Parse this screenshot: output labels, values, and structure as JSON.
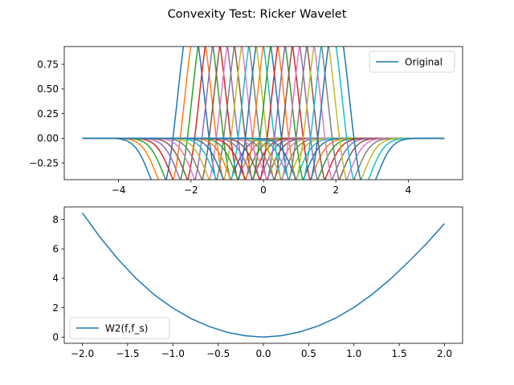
{
  "figure": {
    "title": "Convexity Test: Ricker Wavelet"
  },
  "chart_data": [
    {
      "type": "line",
      "title": "",
      "xlabel": "",
      "ylabel": "",
      "xlim": [
        -5.5,
        5.5
      ],
      "ylim": [
        -0.42,
        0.93
      ],
      "x_ticks": [
        -4,
        -2,
        0,
        2,
        4
      ],
      "x_tick_labels": [
        "−4",
        "−2",
        "0",
        "2",
        "4"
      ],
      "y_ticks": [
        -0.25,
        0,
        0.25,
        0.5,
        0.75
      ],
      "y_tick_labels": [
        "−0.25",
        "0.00",
        "0.25",
        "0.50",
        "0.75"
      ],
      "grid": false,
      "legend": {
        "position": "top-right",
        "entries": [
          "Original"
        ]
      },
      "x_range": [
        -5,
        5
      ],
      "description": "21 shifted Ricker wavelets, shifts from -2 to 2 in steps of 0.2, sigma 0.5, peak about 0.87, minima about -0.39",
      "series_family": {
        "function": "ricker",
        "sigma": 0.5,
        "shifts": [
          -2.0,
          -1.8,
          -1.6,
          -1.4,
          -1.2,
          -1.0,
          -0.8,
          -0.6,
          -0.4,
          -0.2,
          0.0,
          0.2,
          0.4,
          0.6,
          0.8,
          1.0,
          1.2,
          1.4,
          1.6,
          1.8,
          2.0
        ]
      },
      "series_colors": [
        "#1f77b4",
        "#ff7f0e",
        "#2ca02c",
        "#d62728",
        "#9467bd",
        "#8c564b",
        "#e377c2",
        "#7f7f7f",
        "#bcbd22",
        "#17becf"
      ]
    },
    {
      "type": "line",
      "title": "",
      "xlabel": "",
      "ylabel": "",
      "xlim": [
        -2.2,
        2.2
      ],
      "ylim": [
        -0.42,
        8.85
      ],
      "x_ticks": [
        -2.0,
        -1.5,
        -1.0,
        -0.5,
        0.0,
        0.5,
        1.0,
        1.5,
        2.0
      ],
      "x_tick_labels": [
        "−2.0",
        "−1.5",
        "−1.0",
        "−0.5",
        "0.0",
        "0.5",
        "1.0",
        "1.5",
        "2.0"
      ],
      "y_ticks": [
        0,
        2,
        4,
        6,
        8
      ],
      "y_tick_labels": [
        "0",
        "2",
        "4",
        "6",
        "8"
      ],
      "grid": false,
      "legend": {
        "position": "bottom-left",
        "entries": [
          "W2(f,f_s)"
        ]
      },
      "series": [
        {
          "name": "W2(f,f_s)",
          "color": "#1f77b4",
          "x": [
            -2.0,
            -1.8,
            -1.6,
            -1.4,
            -1.2,
            -1.0,
            -0.8,
            -0.6,
            -0.4,
            -0.2,
            0.0,
            0.2,
            0.4,
            0.6,
            0.8,
            1.0,
            1.2,
            1.4,
            1.6,
            1.8,
            2.0
          ],
          "y": [
            8.45,
            6.75,
            5.25,
            3.95,
            2.85,
            1.97,
            1.26,
            0.72,
            0.33,
            0.09,
            0.0,
            0.1,
            0.35,
            0.75,
            1.3,
            2.02,
            2.9,
            3.93,
            5.1,
            6.35,
            7.72
          ]
        }
      ]
    }
  ]
}
